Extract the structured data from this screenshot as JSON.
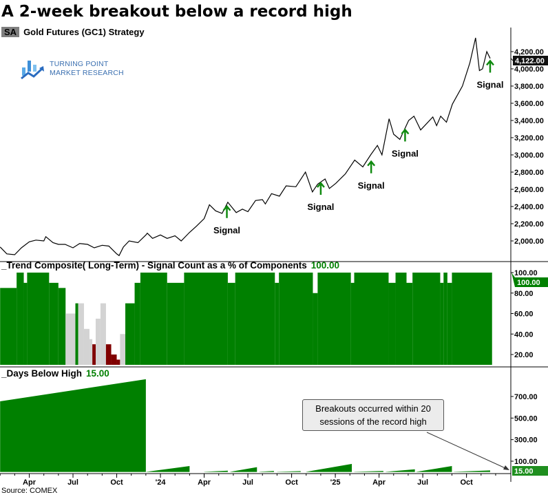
{
  "title": "A 2-week breakout below a record high",
  "subtitle": {
    "badge": "SA",
    "text": "Gold Futures (GC1)  Strategy"
  },
  "logo": {
    "line1": "TURNING POINT",
    "line2": "MARKET RESEARCH"
  },
  "source": "Source: COMEX",
  "annotation": {
    "line1": "Breakouts occurred within 20",
    "line2": "sessions of the record high"
  },
  "colors": {
    "green": "#008000",
    "gray": "#d3d3d3",
    "red": "#800000",
    "line": "#000000",
    "signal": "#108a10"
  },
  "x_ticks": [
    {
      "date": "2023-04-01",
      "label": "Apr"
    },
    {
      "date": "2023-07-01",
      "label": "Jul"
    },
    {
      "date": "2023-10-01",
      "label": "Oct"
    },
    {
      "date": "2024-01-01",
      "label": "'24"
    },
    {
      "date": "2024-04-01",
      "label": "Apr"
    },
    {
      "date": "2024-07-01",
      "label": "Jul"
    },
    {
      "date": "2024-10-01",
      "label": "Oct"
    },
    {
      "date": "2025-01-01",
      "label": "'25"
    },
    {
      "date": "2025-04-01",
      "label": "Apr"
    },
    {
      "date": "2025-07-01",
      "label": "Jul"
    },
    {
      "date": "2025-10-01",
      "label": "Oct"
    }
  ],
  "chart_data": [
    {
      "type": "line",
      "title": "Gold Futures (GC1)",
      "ylim": [
        1800,
        4400
      ],
      "y_ticks": [
        "2,000.00",
        "2,200.00",
        "2,400.00",
        "2,600.00",
        "2,800.00",
        "3,000.00",
        "3,200.00",
        "3,400.00",
        "3,600.00",
        "3,800.00",
        "4,000.00",
        "4,200.00"
      ],
      "y_tick_values": [
        2000,
        2200,
        2400,
        2600,
        2800,
        3000,
        3200,
        3400,
        3600,
        3800,
        4000,
        4200
      ],
      "last_value": 4122,
      "last_label": "4,122.00",
      "series": [
        {
          "points": [
            [
              "2023-02-01",
              1930
            ],
            [
              "2023-02-15",
              1850
            ],
            [
              "2023-03-01",
              1840
            ],
            [
              "2023-03-15",
              1920
            ],
            [
              "2023-04-01",
              1990
            ],
            [
              "2023-04-15",
              2010
            ],
            [
              "2023-05-01",
              2000
            ],
            [
              "2023-05-05",
              2050
            ],
            [
              "2023-05-20",
              1980
            ],
            [
              "2023-06-01",
              1960
            ],
            [
              "2023-06-15",
              1960
            ],
            [
              "2023-07-01",
              1920
            ],
            [
              "2023-07-15",
              1970
            ],
            [
              "2023-08-01",
              1960
            ],
            [
              "2023-08-15",
              1920
            ],
            [
              "2023-09-01",
              1950
            ],
            [
              "2023-09-15",
              1940
            ],
            [
              "2023-10-01",
              1850
            ],
            [
              "2023-10-06",
              1830
            ],
            [
              "2023-10-15",
              1930
            ],
            [
              "2023-10-27",
              2000
            ],
            [
              "2023-11-15",
              1980
            ],
            [
              "2023-12-01",
              2070
            ],
            [
              "2023-12-04",
              2090
            ],
            [
              "2023-12-15",
              2030
            ],
            [
              "2024-01-01",
              2070
            ],
            [
              "2024-01-15",
              2030
            ],
            [
              "2024-02-01",
              2060
            ],
            [
              "2024-02-14",
              2000
            ],
            [
              "2024-03-01",
              2100
            ],
            [
              "2024-03-15",
              2170
            ],
            [
              "2024-04-01",
              2260
            ],
            [
              "2024-04-12",
              2420
            ],
            [
              "2024-04-25",
              2350
            ],
            [
              "2024-05-08",
              2320
            ],
            [
              "2024-05-20",
              2450
            ],
            [
              "2024-06-07",
              2330
            ],
            [
              "2024-06-20",
              2370
            ],
            [
              "2024-07-01",
              2340
            ],
            [
              "2024-07-17",
              2470
            ],
            [
              "2024-08-01",
              2480
            ],
            [
              "2024-08-07",
              2430
            ],
            [
              "2024-08-20",
              2550
            ],
            [
              "2024-09-06",
              2520
            ],
            [
              "2024-09-20",
              2640
            ],
            [
              "2024-10-10",
              2630
            ],
            [
              "2024-10-30",
              2800
            ],
            [
              "2024-11-14",
              2570
            ],
            [
              "2024-11-25",
              2660
            ],
            [
              "2024-12-10",
              2720
            ],
            [
              "2024-12-19",
              2610
            ],
            [
              "2025-01-02",
              2670
            ],
            [
              "2025-01-22",
              2780
            ],
            [
              "2025-02-11",
              2940
            ],
            [
              "2025-02-28",
              2860
            ],
            [
              "2025-03-14",
              3000
            ],
            [
              "2025-03-28",
              3110
            ],
            [
              "2025-04-07",
              3000
            ],
            [
              "2025-04-22",
              3420
            ],
            [
              "2025-05-01",
              3240
            ],
            [
              "2025-05-14",
              3180
            ],
            [
              "2025-06-02",
              3400
            ],
            [
              "2025-06-13",
              3450
            ],
            [
              "2025-06-27",
              3290
            ],
            [
              "2025-07-22",
              3440
            ],
            [
              "2025-07-30",
              3340
            ],
            [
              "2025-08-08",
              3450
            ],
            [
              "2025-08-20",
              3380
            ],
            [
              "2025-09-02",
              3590
            ],
            [
              "2025-09-23",
              3800
            ],
            [
              "2025-10-08",
              4070
            ],
            [
              "2025-10-20",
              4360
            ],
            [
              "2025-10-28",
              3980
            ],
            [
              "2025-11-04",
              4000
            ],
            [
              "2025-11-13",
              4200
            ],
            [
              "2025-11-20",
              4122
            ]
          ]
        }
      ],
      "signals": [
        {
          "date": "2024-05-18",
          "price": 2330,
          "label": "Signal"
        },
        {
          "date": "2024-12-01",
          "price": 2600,
          "label": "Signal"
        },
        {
          "date": "2025-03-15",
          "price": 2850,
          "label": "Signal"
        },
        {
          "date": "2025-05-25",
          "price": 3220,
          "label": "Signal"
        },
        {
          "date": "2025-11-20",
          "price": 4020,
          "label": "Signal"
        }
      ]
    },
    {
      "type": "bar",
      "title": "_Trend Composite( Long-Term) - Signal Count as a % of Components",
      "current_label": "100.00",
      "ylim": [
        10,
        102
      ],
      "y_ticks": [
        "20.00",
        "40.00",
        "60.00",
        "80.00",
        "100.00"
      ],
      "y_tick_values": [
        20,
        40,
        60,
        80,
        100
      ],
      "end_date": "2025-11-24",
      "steps": [
        [
          "2023-02-01",
          85,
          "green"
        ],
        [
          "2023-03-05",
          100,
          "green"
        ],
        [
          "2023-03-20",
          90,
          "green"
        ],
        [
          "2023-03-27",
          100,
          "green"
        ],
        [
          "2023-05-12",
          90,
          "green"
        ],
        [
          "2023-06-01",
          85,
          "green"
        ],
        [
          "2023-06-16",
          60,
          "gray"
        ],
        [
          "2023-07-06",
          70,
          "green"
        ],
        [
          "2023-07-12",
          70,
          "gray"
        ],
        [
          "2023-07-24",
          45,
          "gray"
        ],
        [
          "2023-08-05",
          35,
          "gray"
        ],
        [
          "2023-08-11",
          30,
          "red"
        ],
        [
          "2023-08-18",
          55,
          "gray"
        ],
        [
          "2023-08-28",
          70,
          "gray"
        ],
        [
          "2023-09-09",
          30,
          "red"
        ],
        [
          "2023-09-20",
          20,
          "red"
        ],
        [
          "2023-10-01",
          15,
          "red"
        ],
        [
          "2023-10-08",
          40,
          "gray"
        ],
        [
          "2023-10-19",
          70,
          "green"
        ],
        [
          "2023-11-08",
          90,
          "green"
        ],
        [
          "2023-11-20",
          100,
          "green"
        ],
        [
          "2024-01-15",
          90,
          "green"
        ],
        [
          "2024-02-20",
          100,
          "green"
        ],
        [
          "2024-05-20",
          90,
          "green"
        ],
        [
          "2024-06-05",
          100,
          "green"
        ],
        [
          "2024-08-27",
          90,
          "green"
        ],
        [
          "2024-09-05",
          100,
          "green"
        ],
        [
          "2024-11-15",
          80,
          "green"
        ],
        [
          "2024-11-25",
          100,
          "green"
        ],
        [
          "2025-02-03",
          90,
          "green"
        ],
        [
          "2025-02-10",
          100,
          "green"
        ],
        [
          "2025-04-21",
          90,
          "green"
        ],
        [
          "2025-05-05",
          100,
          "green"
        ],
        [
          "2025-05-28",
          90,
          "green"
        ],
        [
          "2025-06-10",
          100,
          "green"
        ],
        [
          "2025-08-07",
          90,
          "green"
        ],
        [
          "2025-08-14",
          100,
          "green"
        ],
        [
          "2025-08-22",
          90,
          "green"
        ],
        [
          "2025-09-01",
          100,
          "green"
        ]
      ]
    },
    {
      "type": "area",
      "title": "_Days Below High",
      "current_value": 15,
      "current_label": "15.00",
      "ylim": [
        0,
        900
      ],
      "y_ticks": [
        "100.00",
        "300.00",
        "500.00",
        "700.00"
      ],
      "y_tick_values": [
        100,
        300,
        500,
        700
      ],
      "ramps": [
        [
          "2023-02-01",
          "2023-12-01",
          655,
          860
        ],
        [
          "2023-12-02",
          "2024-03-01",
          2,
          55
        ],
        [
          "2024-04-01",
          "2024-05-20",
          2,
          12
        ],
        [
          "2024-05-25",
          "2024-07-20",
          2,
          45
        ],
        [
          "2024-07-25",
          "2024-08-25",
          2,
          10
        ],
        [
          "2024-09-01",
          "2024-10-20",
          2,
          8
        ],
        [
          "2024-11-01",
          "2025-02-05",
          2,
          75
        ],
        [
          "2025-02-10",
          "2025-04-10",
          2,
          10
        ],
        [
          "2025-04-15",
          "2025-06-15",
          2,
          25
        ],
        [
          "2025-06-18",
          "2025-09-01",
          2,
          55
        ],
        [
          "2025-09-05",
          "2025-11-20",
          2,
          15
        ]
      ]
    }
  ]
}
